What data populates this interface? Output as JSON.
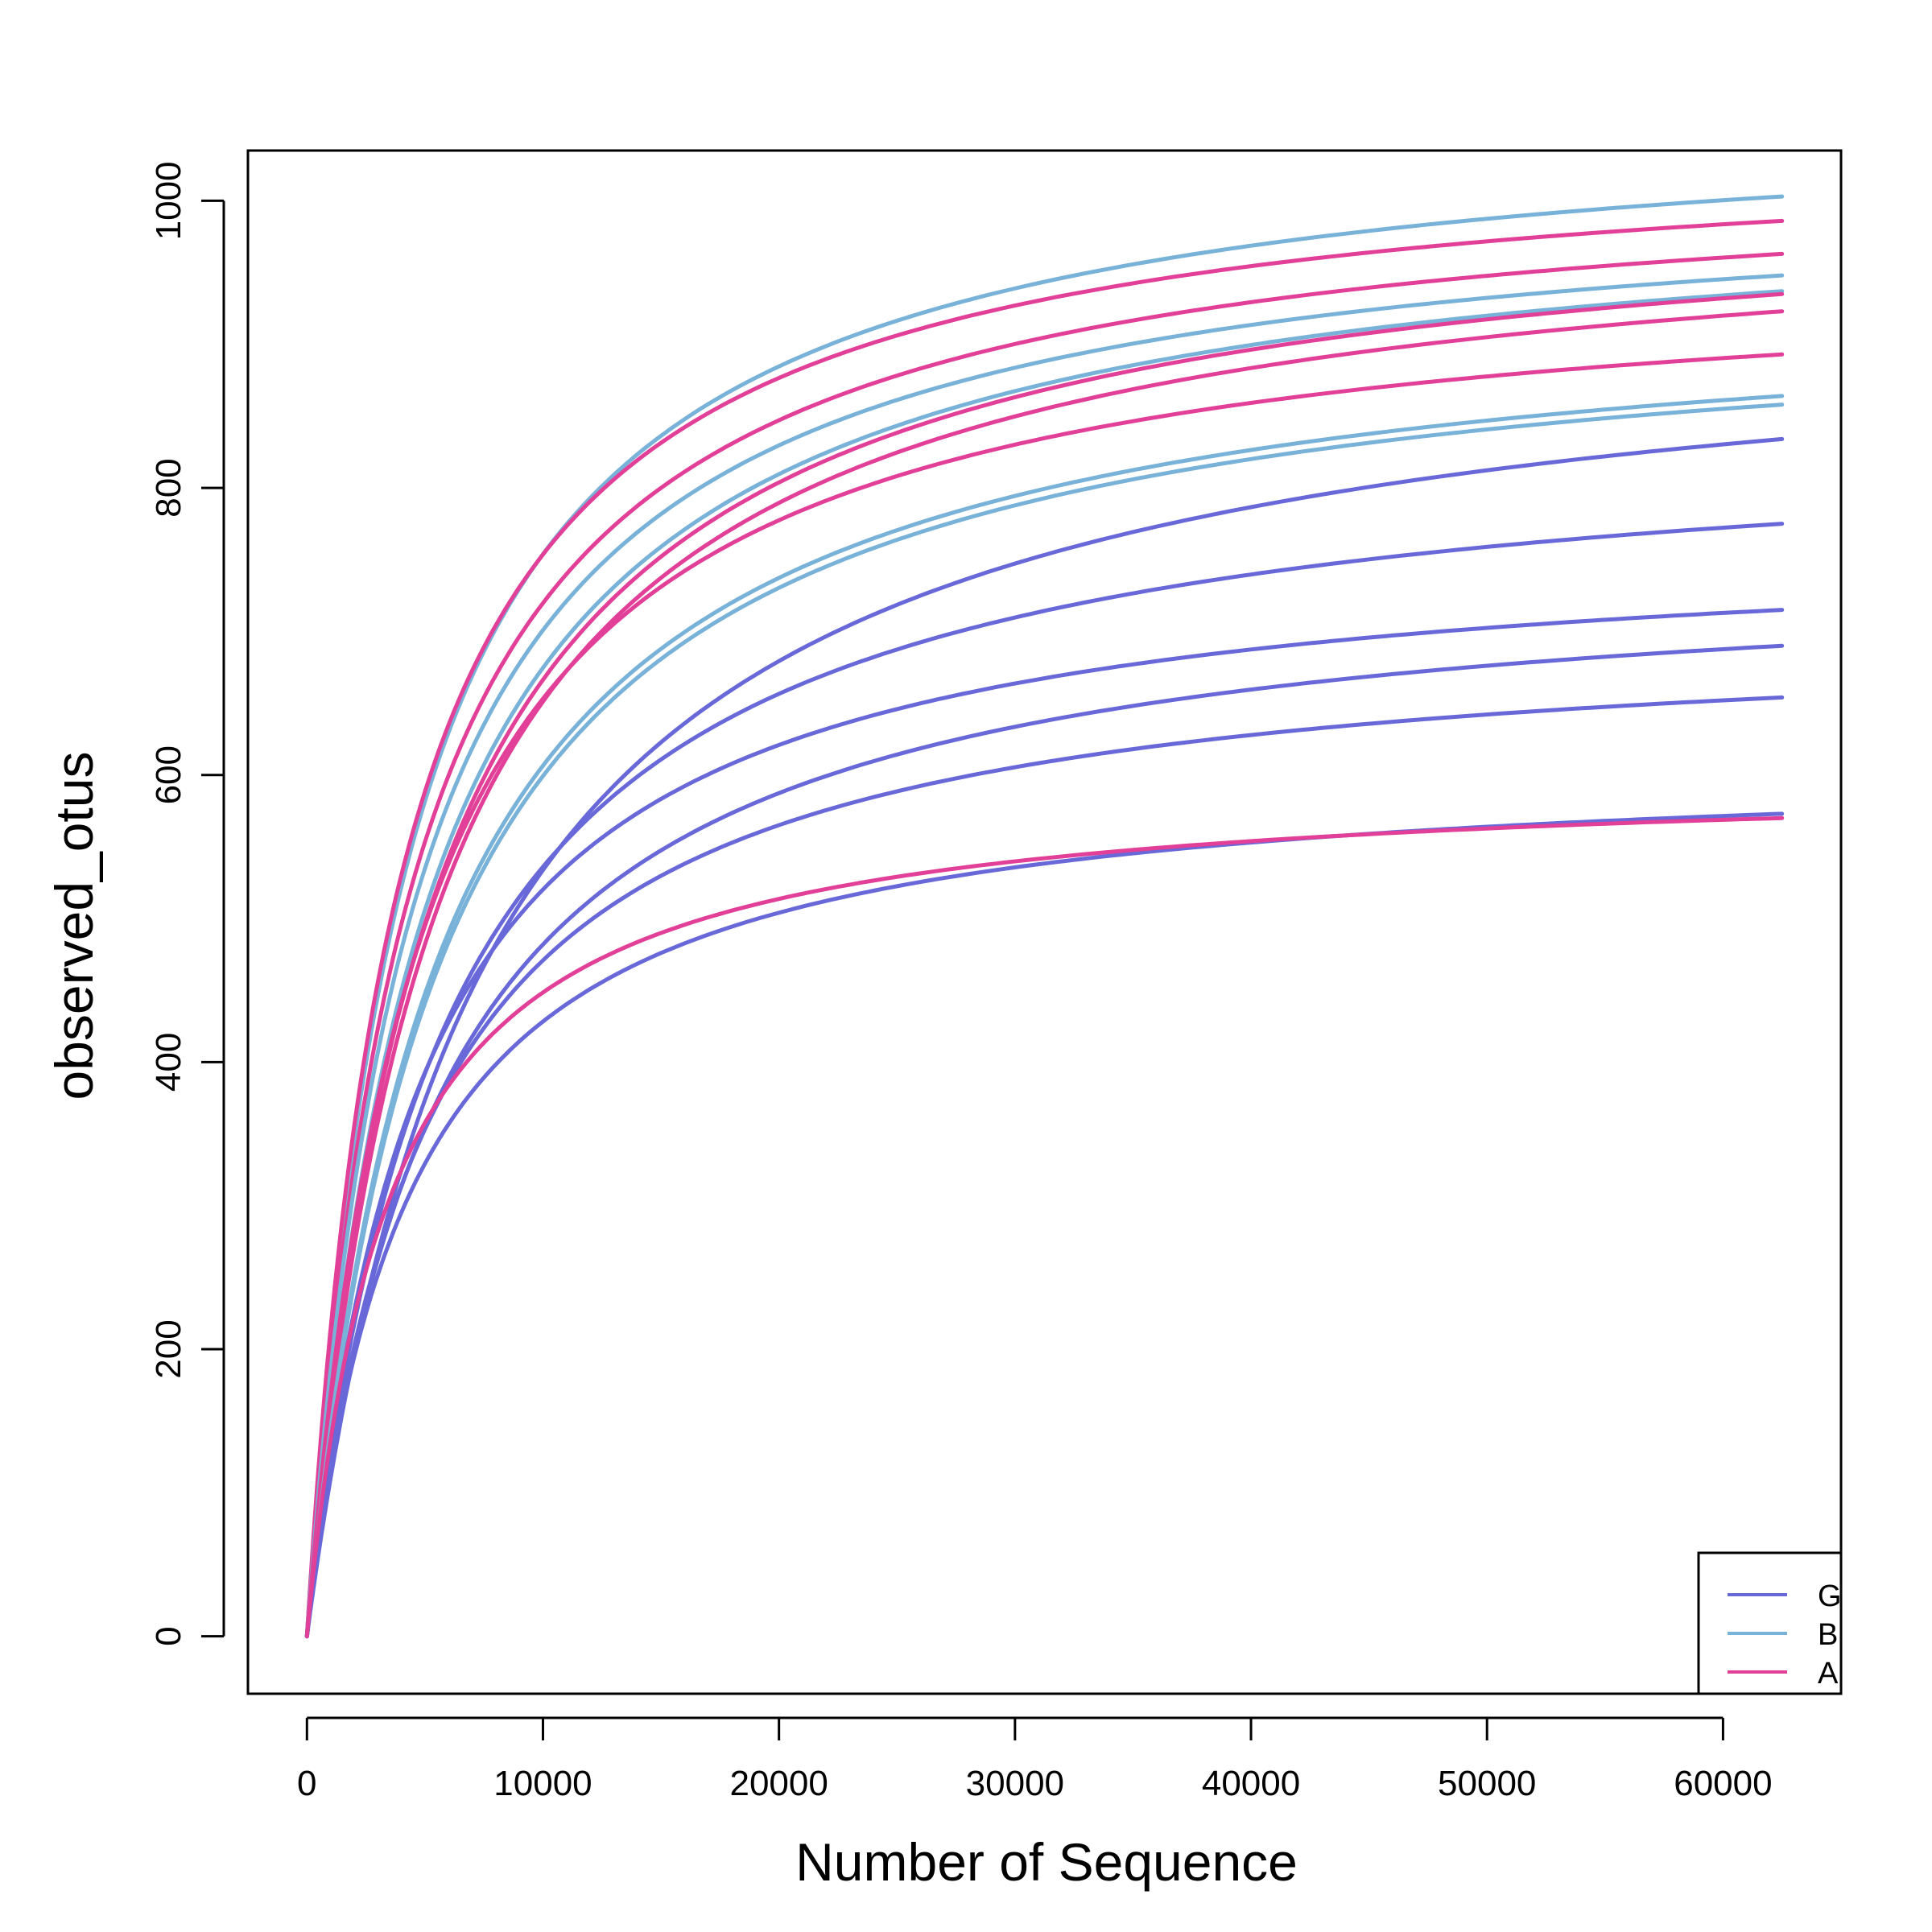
{
  "chart_data": {
    "type": "line",
    "title": "",
    "xlabel": "Number of Sequence",
    "ylabel": "observed_otus",
    "xlim": [
      -2500,
      65000
    ],
    "ylim": [
      -40,
      1035
    ],
    "xticks": [
      0,
      10000,
      20000,
      30000,
      40000,
      50000,
      60000
    ],
    "yticks": [
      0,
      200,
      400,
      600,
      800,
      1000
    ],
    "legend": {
      "placement": "bottom-right",
      "entries": [
        {
          "label": "G",
          "color": "#6868d8"
        },
        {
          "label": "B",
          "color": "#79b2d8"
        },
        {
          "label": "A",
          "color": "#e13f98"
        }
      ]
    },
    "x_end": 62500,
    "series": [
      {
        "group": "B",
        "color": "#79b2d8",
        "end": 1003,
        "half": 4200,
        "values_at": {
          "20000": 910,
          "40000": 975
        }
      },
      {
        "group": "A",
        "color": "#e13f98",
        "end": 986,
        "half": 3900,
        "values_at": {
          "20000": 895,
          "40000": 962
        }
      },
      {
        "group": "A",
        "color": "#e13f98",
        "end": 963,
        "half": 4300,
        "values_at": {
          "20000": 870,
          "40000": 937
        }
      },
      {
        "group": "B",
        "color": "#79b2d8",
        "end": 948,
        "half": 4500,
        "values_at": {
          "20000": 850,
          "40000": 920
        }
      },
      {
        "group": "B",
        "color": "#79b2d8",
        "end": 937,
        "half": 5000,
        "values_at": {
          "20000": 835,
          "40000": 908
        }
      },
      {
        "group": "A",
        "color": "#e13f98",
        "end": 935,
        "half": 5200,
        "values_at": {
          "20000": 830,
          "40000": 905
        }
      },
      {
        "group": "A",
        "color": "#e13f98",
        "end": 923,
        "half": 5400,
        "values_at": {
          "20000": 818,
          "40000": 893
        }
      },
      {
        "group": "A",
        "color": "#e13f98",
        "end": 893,
        "half": 4700,
        "values_at": {
          "20000": 795,
          "40000": 865
        }
      },
      {
        "group": "B",
        "color": "#79b2d8",
        "end": 864,
        "half": 5500,
        "values_at": {
          "20000": 760,
          "40000": 835
        }
      },
      {
        "group": "B",
        "color": "#79b2d8",
        "end": 858,
        "half": 5600,
        "values_at": {
          "20000": 755,
          "40000": 830
        }
      },
      {
        "group": "G",
        "color": "#6868d8",
        "end": 834,
        "half": 7500,
        "values_at": {
          "20000": 700,
          "40000": 800
        }
      },
      {
        "group": "G",
        "color": "#6868d8",
        "end": 775,
        "half": 5800,
        "values_at": {
          "20000": 680,
          "40000": 755
        }
      },
      {
        "group": "G",
        "color": "#6868d8",
        "end": 715,
        "half": 4800,
        "values_at": {
          "20000": 650,
          "40000": 700
        }
      },
      {
        "group": "G",
        "color": "#6868d8",
        "end": 690,
        "half": 5600,
        "values_at": {
          "20000": 615,
          "40000": 672
        }
      },
      {
        "group": "G",
        "color": "#6868d8",
        "end": 654,
        "half": 5000,
        "values_at": {
          "20000": 600,
          "40000": 638
        }
      },
      {
        "group": "G",
        "color": "#6868d8",
        "end": 573,
        "half": 4300,
        "values_at": {
          "20000": 525,
          "40000": 558
        }
      },
      {
        "group": "A",
        "color": "#e13f98",
        "end": 570,
        "half": 3400,
        "values_at": {
          "20000": 530,
          "40000": 558
        }
      }
    ]
  }
}
